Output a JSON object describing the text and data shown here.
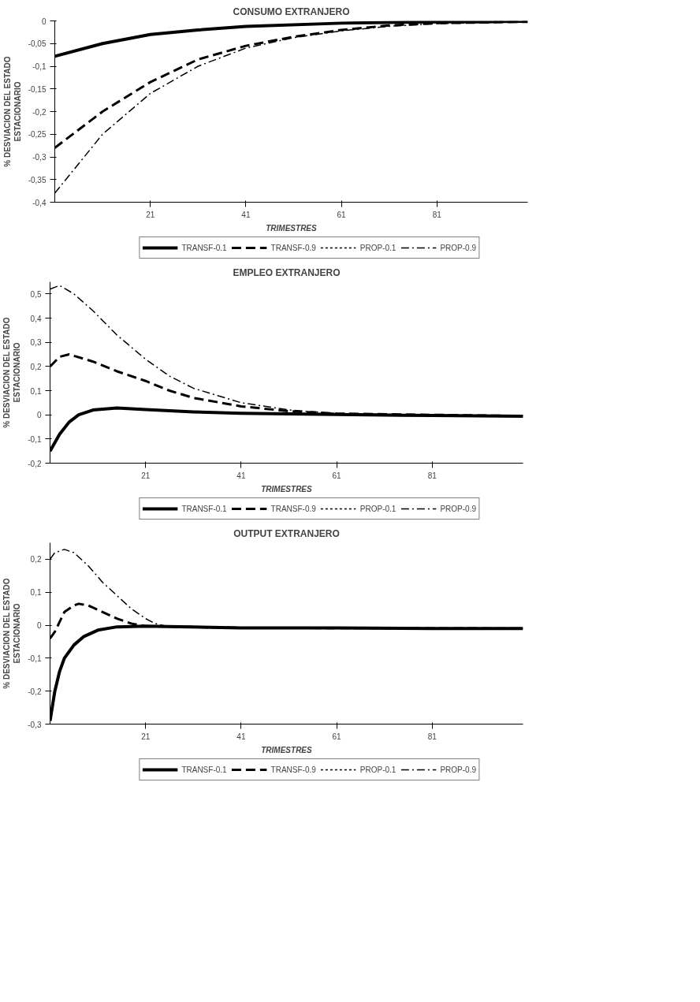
{
  "chart_data": [
    {
      "type": "line",
      "title": "CONSUMO EXTRANJERO",
      "xlabel": "TRIMESTRES",
      "ylabel": "% DESVIACION DEL ESTADO\nESTACIONARIO",
      "xlim": [
        1,
        100
      ],
      "xticks": [
        21,
        41,
        61,
        81
      ],
      "ylim": [
        -0.4,
        0
      ],
      "yticks": [
        {
          "value": -0.4,
          "label": "-0,4"
        },
        {
          "value": -0.35,
          "label": "-0,35"
        },
        {
          "value": -0.3,
          "label": "-0,3"
        },
        {
          "value": -0.25,
          "label": "-0,25"
        },
        {
          "value": -0.2,
          "label": "-0,2"
        },
        {
          "value": -0.15,
          "label": "-0,15"
        },
        {
          "value": -0.1,
          "label": "-0,1"
        },
        {
          "value": -0.05,
          "label": "-0,05"
        },
        {
          "value": 0,
          "label": "0"
        }
      ],
      "grid": false,
      "legend": "bottom",
      "marker": "none",
      "series": [
        {
          "name": "TRANSF-0.1",
          "color": "#000000",
          "line_style": "solid",
          "x": [
            1,
            11,
            21,
            31,
            41,
            61,
            81,
            100
          ],
          "values": [
            -0.078,
            -0.05,
            -0.03,
            -0.02,
            -0.012,
            -0.005,
            -0.002,
            -0.001
          ]
        },
        {
          "name": "TRANSF-0.9",
          "color": "#000000",
          "line_style": "dashed",
          "x": [
            1,
            11,
            21,
            31,
            41,
            51,
            61,
            71,
            81,
            100
          ],
          "values": [
            -0.28,
            -0.2,
            -0.135,
            -0.085,
            -0.055,
            -0.035,
            -0.02,
            -0.01,
            -0.005,
            -0.002
          ]
        },
        {
          "name": "PROP-0.1",
          "color": "#000000",
          "line_style": "dotted",
          "values": [
            null
          ]
        },
        {
          "name": "PROP-0.9",
          "color": "#000000",
          "line_style": "dashdot",
          "x": [
            1,
            11,
            21,
            31,
            41,
            51,
            61,
            71,
            81,
            100
          ],
          "values": [
            -0.38,
            -0.25,
            -0.16,
            -0.1,
            -0.06,
            -0.037,
            -0.022,
            -0.012,
            -0.006,
            -0.002
          ]
        }
      ]
    },
    {
      "type": "line",
      "title": "EMPLEO EXTRANJERO",
      "xlabel": "TRIMESTRES",
      "ylabel": "% DESVIACION DEL ESTADO\nESTACIONARIO",
      "xlim": [
        1,
        100
      ],
      "xticks": [
        21,
        41,
        61,
        81
      ],
      "ylim": [
        -0.2,
        0.55
      ],
      "yticks": [
        {
          "value": -0.2,
          "label": "-0,2"
        },
        {
          "value": -0.1,
          "label": "-0,1"
        },
        {
          "value": 0,
          "label": "0"
        },
        {
          "value": 0.1,
          "label": "0,1"
        },
        {
          "value": 0.2,
          "label": "0,2"
        },
        {
          "value": 0.3,
          "label": "0,3"
        },
        {
          "value": 0.4,
          "label": "0,4"
        },
        {
          "value": 0.5,
          "label": "0,5"
        }
      ],
      "grid": false,
      "legend": "bottom",
      "marker": "none",
      "series": [
        {
          "name": "TRANSF-0.1",
          "color": "#000000",
          "line_style": "solid",
          "x": [
            1,
            3,
            5,
            7,
            10,
            15,
            21,
            31,
            41,
            61,
            81,
            100
          ],
          "values": [
            -0.15,
            -0.08,
            -0.03,
            0,
            0.02,
            0.028,
            0.022,
            0.012,
            0.006,
            0.001,
            -0.003,
            -0.006
          ]
        },
        {
          "name": "TRANSF-0.9",
          "color": "#000000",
          "line_style": "dashed",
          "x": [
            1,
            3,
            5,
            10,
            15,
            21,
            26,
            31,
            41,
            51,
            61,
            81,
            100
          ],
          "values": [
            0.2,
            0.24,
            0.25,
            0.22,
            0.18,
            0.14,
            0.1,
            0.07,
            0.035,
            0.015,
            0.005,
            0,
            -0.005
          ]
        },
        {
          "name": "PROP-0.1",
          "color": "#000000",
          "line_style": "dotted",
          "values": [
            null
          ]
        },
        {
          "name": "PROP-0.9",
          "color": "#000000",
          "line_style": "dashdot",
          "x": [
            1,
            3,
            6,
            10,
            15,
            21,
            26,
            31,
            41,
            51,
            61,
            81,
            100
          ],
          "values": [
            0.52,
            0.535,
            0.5,
            0.43,
            0.33,
            0.23,
            0.16,
            0.11,
            0.05,
            0.02,
            0.005,
            0,
            -0.005
          ]
        }
      ]
    },
    {
      "type": "line",
      "title": "OUTPUT EXTRANJERO",
      "xlabel": "TRIMESTRES",
      "ylabel": "% DESVIACION DEL ESTADO\nESTACIONARIO",
      "xlim": [
        1,
        100
      ],
      "xticks": [
        21,
        41,
        61,
        81
      ],
      "ylim": [
        -0.3,
        0.25
      ],
      "yticks": [
        {
          "value": -0.3,
          "label": "-0,3"
        },
        {
          "value": -0.2,
          "label": "-0,2"
        },
        {
          "value": -0.1,
          "label": "-0,1"
        },
        {
          "value": 0,
          "label": "0"
        },
        {
          "value": 0.1,
          "label": "0,1"
        },
        {
          "value": 0.2,
          "label": "0,2"
        }
      ],
      "grid": false,
      "legend": "bottom",
      "marker": "none",
      "series": [
        {
          "name": "TRANSF-0.1",
          "color": "#000000",
          "line_style": "solid",
          "x": [
            1,
            2,
            3,
            4,
            6,
            8,
            11,
            15,
            21,
            41,
            61,
            81,
            100
          ],
          "values": [
            -0.29,
            -0.2,
            -0.14,
            -0.1,
            -0.06,
            -0.035,
            -0.015,
            -0.005,
            -0.003,
            -0.008,
            -0.008,
            -0.01,
            -0.01
          ]
        },
        {
          "name": "TRANSF-0.9",
          "color": "#000000",
          "line_style": "dashed",
          "x": [
            1,
            2,
            3,
            4,
            6,
            7,
            9,
            12,
            15,
            18,
            21,
            41,
            100
          ],
          "values": [
            -0.04,
            -0.02,
            0.01,
            0.04,
            0.06,
            0.065,
            0.06,
            0.04,
            0.02,
            0.005,
            -0.003,
            -0.008,
            -0.01
          ]
        },
        {
          "name": "PROP-0.1",
          "color": "#000000",
          "line_style": "dotted",
          "values": [
            null
          ]
        },
        {
          "name": "PROP-0.9",
          "color": "#000000",
          "line_style": "dashdot",
          "x": [
            1,
            2,
            4,
            6,
            9,
            12,
            15,
            18,
            21,
            23,
            26,
            41,
            100
          ],
          "values": [
            0.2,
            0.22,
            0.23,
            0.22,
            0.18,
            0.13,
            0.09,
            0.05,
            0.02,
            0.005,
            -0.005,
            -0.008,
            -0.01
          ]
        }
      ]
    }
  ]
}
